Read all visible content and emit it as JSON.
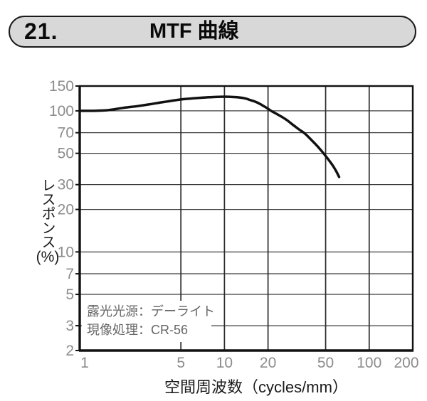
{
  "header": {
    "number": "21.",
    "title": "MTF 曲線"
  },
  "chart_data": {
    "type": "line",
    "title": "MTF曲線",
    "x_scale": "log",
    "y_scale": "log",
    "xlabel": "空間周波数（cycles/mm）",
    "ylabel": "レスポンス",
    "ylabel_unit": "(%)",
    "xlim": [
      1,
      200
    ],
    "ylim": [
      2,
      150
    ],
    "x_ticks": [
      1,
      5,
      10,
      20,
      50,
      100,
      200
    ],
    "y_ticks": [
      150,
      100,
      70,
      50,
      30,
      20,
      10,
      7,
      5,
      3,
      2
    ],
    "grid": true,
    "legend": "none",
    "series": [
      {
        "name": "MTF",
        "points": [
          [
            1,
            100
          ],
          [
            1.3,
            100.3
          ],
          [
            1.6,
            101.5
          ],
          [
            2,
            105
          ],
          [
            2.5,
            108
          ],
          [
            3,
            111
          ],
          [
            3.5,
            114
          ],
          [
            4,
            116.5
          ],
          [
            5,
            120.5
          ],
          [
            6,
            122.5
          ],
          [
            7,
            124
          ],
          [
            8,
            125
          ],
          [
            9,
            125.6
          ],
          [
            10,
            126
          ],
          [
            11,
            125.8
          ],
          [
            12,
            125.2
          ],
          [
            13,
            124
          ],
          [
            14,
            122.3
          ],
          [
            15,
            119.5
          ],
          [
            16,
            117
          ],
          [
            17,
            114
          ],
          [
            18,
            110.5
          ],
          [
            19,
            107
          ],
          [
            20,
            103.5
          ],
          [
            21,
            100
          ],
          [
            23,
            95
          ],
          [
            25,
            90.5
          ],
          [
            27,
            86
          ],
          [
            30,
            79
          ],
          [
            33,
            73.5
          ],
          [
            36,
            69
          ],
          [
            40,
            62
          ],
          [
            44,
            56
          ],
          [
            48,
            50.5
          ],
          [
            52,
            45.5
          ],
          [
            56,
            41
          ],
          [
            59,
            37.5
          ],
          [
            62,
            34
          ]
        ]
      }
    ],
    "annotation": {
      "lines": [
        "露光光源：デーライト",
        "現像処理：CR-56"
      ]
    }
  },
  "colors": {
    "page_bg": "#ffffff",
    "banner_fill": "#d8d8d8",
    "banner_border": "#1a1a1a",
    "header_text": "#0a0a0a",
    "tick_label": "#8c8c8c",
    "axis_text": "#1a1a1a",
    "grid_h": "#3d3d3d",
    "grid_v": "#2b2b2b",
    "frame": "#111111",
    "curve": "#111111",
    "annotation_text": "#666666"
  }
}
